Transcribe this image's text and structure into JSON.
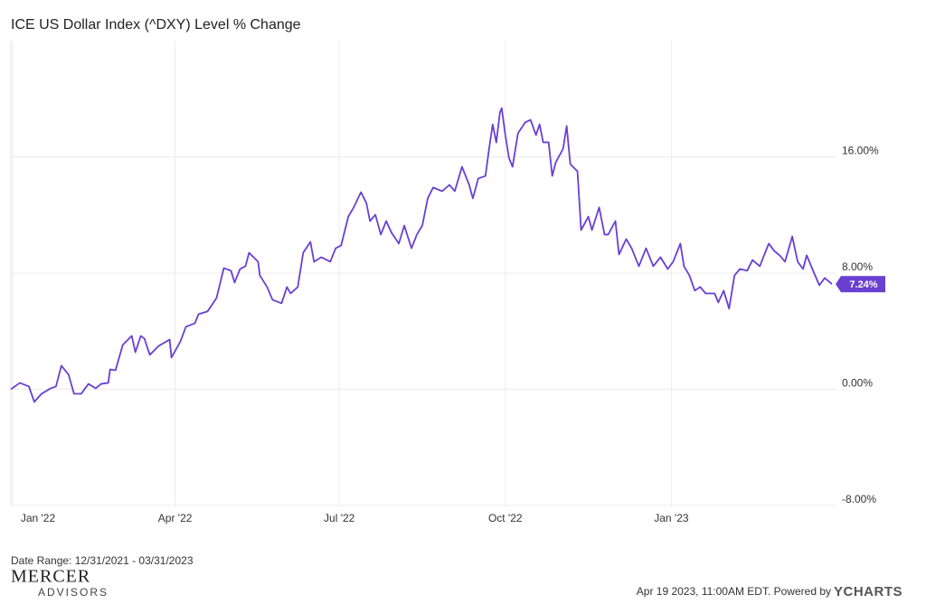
{
  "chart_data": {
    "type": "line",
    "title": "ICE US Dollar Index (^DXY) Level % Change",
    "x": [
      "2021-12-31",
      "2022-01-05",
      "2022-01-10",
      "2022-01-13",
      "2022-01-17",
      "2022-01-22",
      "2022-01-25",
      "2022-01-28",
      "2022-02-01",
      "2022-02-04",
      "2022-02-08",
      "2022-02-12",
      "2022-02-16",
      "2022-02-19",
      "2022-02-23",
      "2022-02-24",
      "2022-02-27",
      "2022-03-03",
      "2022-03-08",
      "2022-03-10",
      "2022-03-13",
      "2022-03-15",
      "2022-03-18",
      "2022-03-23",
      "2022-03-29",
      "2022-03-30",
      "2022-04-04",
      "2022-04-07",
      "2022-04-12",
      "2022-04-14",
      "2022-04-19",
      "2022-04-24",
      "2022-04-28",
      "2022-05-02",
      "2022-05-04",
      "2022-05-07",
      "2022-05-10",
      "2022-05-12",
      "2022-05-17",
      "2022-05-18",
      "2022-05-22",
      "2022-05-25",
      "2022-05-30",
      "2022-06-02",
      "2022-06-04",
      "2022-06-08",
      "2022-06-11",
      "2022-06-15",
      "2022-06-17",
      "2022-06-21",
      "2022-06-26",
      "2022-06-29",
      "2022-07-02",
      "2022-07-06",
      "2022-07-09",
      "2022-07-13",
      "2022-07-16",
      "2022-07-18",
      "2022-07-21",
      "2022-07-24",
      "2022-07-27",
      "2022-07-30",
      "2022-08-03",
      "2022-08-06",
      "2022-08-10",
      "2022-08-13",
      "2022-08-16",
      "2022-08-19",
      "2022-08-22",
      "2022-08-27",
      "2022-08-31",
      "2022-09-03",
      "2022-09-07",
      "2022-09-11",
      "2022-09-13",
      "2022-09-16",
      "2022-09-20",
      "2022-09-22",
      "2022-09-24",
      "2022-09-26",
      "2022-09-28",
      "2022-09-29",
      "2022-10-01",
      "2022-10-03",
      "2022-10-05",
      "2022-10-08",
      "2022-10-12",
      "2022-10-15",
      "2022-10-18",
      "2022-10-20",
      "2022-10-22",
      "2022-10-25",
      "2022-10-27",
      "2022-10-29",
      "2022-11-02",
      "2022-11-04",
      "2022-11-06",
      "2022-11-10",
      "2022-11-12",
      "2022-11-16",
      "2022-11-18",
      "2022-11-22",
      "2022-11-25",
      "2022-11-27",
      "2022-12-01",
      "2022-12-03",
      "2022-12-07",
      "2022-12-10",
      "2022-12-14",
      "2022-12-18",
      "2022-12-22",
      "2022-12-26",
      "2022-12-30",
      "2023-01-02",
      "2023-01-06",
      "2023-01-08",
      "2023-01-11",
      "2023-01-14",
      "2023-01-17",
      "2023-01-20",
      "2023-01-25",
      "2023-01-27",
      "2023-01-30",
      "2023-02-02",
      "2023-02-05",
      "2023-02-08",
      "2023-02-12",
      "2023-02-15",
      "2023-02-19",
      "2023-02-24",
      "2023-02-27",
      "2023-03-02",
      "2023-03-05",
      "2023-03-09",
      "2023-03-12",
      "2023-03-15",
      "2023-03-17",
      "2023-03-21",
      "2023-03-24",
      "2023-03-27",
      "2023-03-31"
    ],
    "values": [
      0,
      0.44,
      0.19,
      -0.87,
      -0.31,
      0.06,
      0.19,
      1.62,
      1.0,
      -0.31,
      -0.31,
      0.37,
      0.06,
      0.37,
      0.44,
      1.37,
      1.31,
      3.05,
      3.67,
      2.55,
      3.67,
      3.49,
      2.37,
      2.99,
      3.42,
      2.18,
      3.3,
      4.3,
      4.55,
      5.17,
      5.36,
      6.29,
      8.34,
      8.16,
      7.35,
      8.28,
      8.47,
      9.4,
      8.78,
      7.84,
      7.04,
      6.16,
      5.92,
      7.04,
      6.6,
      7.04,
      9.4,
      10.15,
      8.78,
      9.09,
      8.78,
      9.71,
      9.9,
      11.89,
      12.52,
      13.57,
      12.83,
      11.58,
      12.02,
      10.65,
      11.58,
      10.77,
      10.03,
      11.27,
      9.71,
      10.65,
      11.27,
      13.14,
      13.89,
      13.64,
      14.07,
      13.64,
      15.32,
      14.07,
      13.14,
      14.51,
      14.69,
      16.56,
      18.24,
      16.99,
      19.05,
      19.36,
      17.5,
      15.94,
      15.32,
      17.62,
      18.37,
      18.55,
      17.5,
      18.24,
      17.0,
      17.0,
      14.69,
      15.63,
      16.56,
      18.12,
      15.5,
      15.0,
      10.96,
      11.89,
      10.96,
      12.52,
      10.65,
      10.65,
      11.58,
      9.28,
      10.34,
      9.71,
      8.47,
      9.71,
      8.47,
      9.09,
      8.28,
      8.78,
      10.03,
      8.47,
      7.84,
      6.79,
      7.04,
      6.6,
      6.6,
      5.98,
      6.79,
      5.55,
      7.84,
      8.28,
      8.16,
      8.9,
      8.47,
      10.03,
      9.53,
      9.22,
      8.78,
      10.52,
      8.78,
      8.28,
      9.22,
      8.03,
      7.16,
      7.66,
      7.24
    ],
    "last_value_label": "7.24%",
    "color": "#6a3fd2",
    "xlim": [
      "2021-12-31",
      "2023-03-31"
    ],
    "xticks": [
      {
        "value": "2022-01-01",
        "label": "Jan '22"
      },
      {
        "value": "2022-04-01",
        "label": "Apr '22"
      },
      {
        "value": "2022-07-01",
        "label": "Jul '22"
      },
      {
        "value": "2022-10-01",
        "label": "Oct '22"
      },
      {
        "value": "2023-01-01",
        "label": "Jan '23"
      }
    ],
    "ylim": [
      -8,
      24
    ],
    "yticks": [
      {
        "value": -8,
        "label": "-8.00%"
      },
      {
        "value": 0,
        "label": "0.00%"
      },
      {
        "value": 8,
        "label": "8.00%"
      },
      {
        "value": 16,
        "label": "16.00%"
      }
    ],
    "grid": true,
    "y_axis_side": "right"
  },
  "footer": {
    "date_range": "Date Range: 12/31/2021 - 03/31/2023",
    "brand_top": "MERCER",
    "brand_bottom": "ADVISORS",
    "timestamp": "Apr 19 2023, 11:00AM EDT. Powered by",
    "logo": "YCHARTS"
  }
}
